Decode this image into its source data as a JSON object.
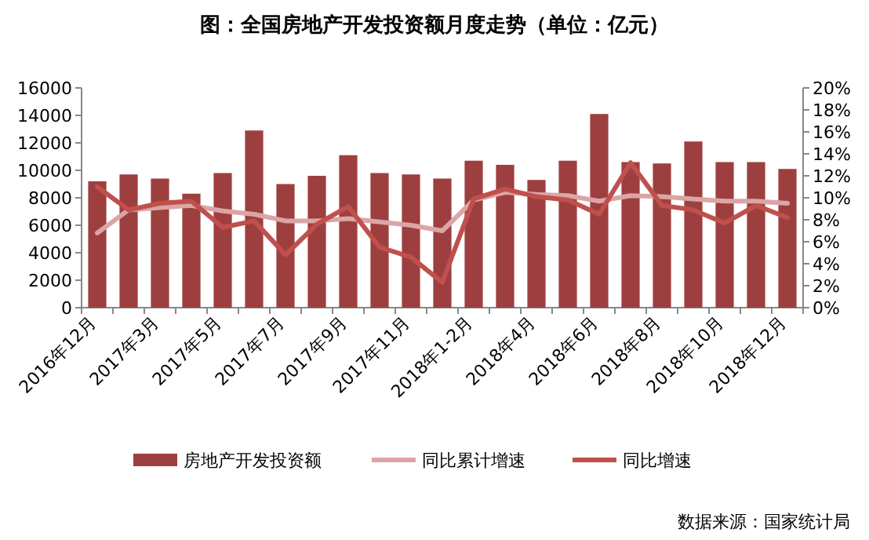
{
  "chart_data": {
    "type": "bar",
    "title": "图：全国房地产开发投资额月度走势（单位：亿元）",
    "categories": [
      "2016年12月",
      null,
      "2017年3月",
      null,
      "2017年5月",
      null,
      "2017年7月",
      null,
      "2017年9月",
      null,
      "2017年11月",
      null,
      "2018年1-2月",
      null,
      "2018年4月",
      null,
      "2018年6月",
      null,
      "2018年8月",
      null,
      "2018年10月",
      null,
      "2018年12月"
    ],
    "series": [
      {
        "name": "房地产开发投资额",
        "color": "#9e3f3f",
        "values": [
          9200,
          9700,
          9400,
          8300,
          9800,
          12900,
          9000,
          9600,
          11100,
          9800,
          9700,
          9400,
          10700,
          10400,
          9300,
          10700,
          14100,
          10600,
          10500,
          12100,
          10600,
          10600,
          10100
        ]
      },
      {
        "name": "同比累计增速",
        "type": "line",
        "axis": "y2",
        "color": "#dba5a5",
        "values": [
          6.8,
          8.9,
          9.1,
          9.3,
          8.8,
          8.5,
          7.9,
          7.9,
          8.1,
          7.8,
          7.5,
          7.0,
          9.8,
          10.5,
          10.3,
          10.2,
          9.7,
          10.2,
          10.1,
          9.9,
          9.7,
          9.7,
          9.5
        ]
      },
      {
        "name": "同比增速",
        "type": "line",
        "axis": "y2",
        "color": "#c0504d",
        "values": [
          11.0,
          8.9,
          9.5,
          9.7,
          7.3,
          7.9,
          4.8,
          7.6,
          9.2,
          5.5,
          4.6,
          2.3,
          9.9,
          10.8,
          10.1,
          9.8,
          8.5,
          13.2,
          9.3,
          8.9,
          7.7,
          9.3,
          8.2
        ]
      }
    ],
    "ylim": [
      0,
      16000
    ],
    "yticks": [
      0,
      2000,
      4000,
      6000,
      8000,
      10000,
      12000,
      14000,
      16000
    ],
    "y2lim": [
      0,
      20
    ],
    "y2ticks": [
      {
        "value": 0,
        "label": "0%"
      },
      {
        "value": 2,
        "label": "2%"
      },
      {
        "value": 4,
        "label": "4%"
      },
      {
        "value": 6,
        "label": "6%"
      },
      {
        "value": 8,
        "label": "8%"
      },
      {
        "value": 10,
        "label": "10%"
      },
      {
        "value": 12,
        "label": "12%"
      },
      {
        "value": 14,
        "label": "14%"
      },
      {
        "value": 16,
        "label": "16%"
      },
      {
        "value": 18,
        "label": "18%"
      },
      {
        "value": 20,
        "label": "20%"
      }
    ],
    "grid": false,
    "legend": "bottom",
    "marker": "none",
    "annotations": [
      "数据来源：国家统计局"
    ]
  }
}
